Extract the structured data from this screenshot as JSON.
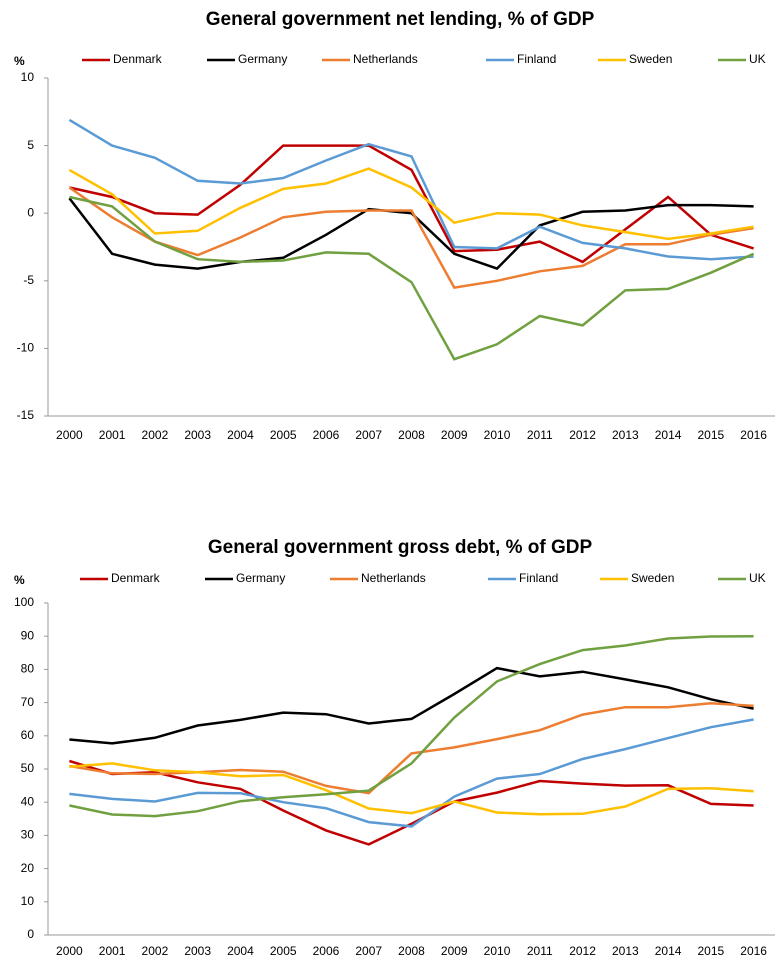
{
  "chart_data": [
    {
      "type": "line",
      "title": "General government net lending, % of GDP",
      "y_label": "%",
      "categories": [
        "2000",
        "2001",
        "2002",
        "2003",
        "2004",
        "2005",
        "2006",
        "2007",
        "2008",
        "2009",
        "2010",
        "2011",
        "2012",
        "2013",
        "2014",
        "2015",
        "2016"
      ],
      "ylim": [
        -15,
        10
      ],
      "yticks": [
        -15,
        -10,
        -5,
        0,
        5,
        10
      ],
      "grid": false,
      "legend": "top",
      "series": [
        {
          "name": "Denmark",
          "color": "#c00000",
          "values": [
            1.9,
            1.2,
            0.0,
            -0.1,
            2.1,
            5.0,
            5.0,
            5.0,
            3.2,
            -2.8,
            -2.7,
            -2.1,
            -3.6,
            -1.2,
            1.2,
            -1.6,
            -2.6
          ]
        },
        {
          "name": "Germany",
          "color": "#000000",
          "values": [
            1.1,
            -3.0,
            -3.8,
            -4.1,
            -3.6,
            -3.3,
            -1.6,
            0.3,
            0.0,
            -3.0,
            -4.1,
            -0.9,
            0.1,
            0.2,
            0.6,
            0.6,
            0.5
          ]
        },
        {
          "name": "Netherlands",
          "color": "#ed7d31",
          "values": [
            1.9,
            -0.3,
            -2.1,
            -3.1,
            -1.8,
            -0.3,
            0.1,
            0.2,
            0.2,
            -5.5,
            -5.0,
            -4.3,
            -3.9,
            -2.3,
            -2.3,
            -1.6,
            -1.1
          ]
        },
        {
          "name": "Finland",
          "color": "#5b9bd5",
          "values": [
            6.9,
            5.0,
            4.1,
            2.4,
            2.2,
            2.6,
            3.9,
            5.1,
            4.2,
            -2.5,
            -2.6,
            -1.0,
            -2.2,
            -2.6,
            -3.2,
            -3.4,
            -3.2
          ]
        },
        {
          "name": "Sweden",
          "color": "#ffc000",
          "values": [
            3.2,
            1.4,
            -1.5,
            -1.3,
            0.4,
            1.8,
            2.2,
            3.3,
            1.9,
            -0.7,
            0.0,
            -0.1,
            -0.9,
            -1.4,
            -1.9,
            -1.5,
            -1.0
          ]
        },
        {
          "name": "UK",
          "color": "#70a040",
          "values": [
            1.2,
            0.5,
            -2.1,
            -3.4,
            -3.6,
            -3.5,
            -2.9,
            -3.0,
            -5.1,
            -10.8,
            -9.7,
            -7.6,
            -8.3,
            -5.7,
            -5.6,
            -4.4,
            -3.0
          ]
        }
      ]
    },
    {
      "type": "line",
      "title": "General government gross debt, % of GDP",
      "y_label": "%",
      "categories": [
        "2000",
        "2001",
        "2002",
        "2003",
        "2004",
        "2005",
        "2006",
        "2007",
        "2008",
        "2009",
        "2010",
        "2011",
        "2012",
        "2013",
        "2014",
        "2015",
        "2016"
      ],
      "ylim": [
        0,
        100
      ],
      "yticks": [
        0,
        10,
        20,
        30,
        40,
        50,
        60,
        70,
        80,
        90,
        100
      ],
      "grid": false,
      "legend": "top",
      "series": [
        {
          "name": "Denmark",
          "color": "#c00000",
          "values": [
            52.4,
            48.5,
            49.0,
            46.0,
            44.0,
            37.5,
            31.5,
            27.3,
            33.5,
            40.2,
            42.9,
            46.4,
            45.6,
            45.0,
            45.1,
            39.5,
            39.0
          ]
        },
        {
          "name": "Germany",
          "color": "#000000",
          "values": [
            58.9,
            57.7,
            59.4,
            63.1,
            64.8,
            67.0,
            66.5,
            63.7,
            65.1,
            72.6,
            80.4,
            77.9,
            79.3,
            77.0,
            74.6,
            71.0,
            68.2
          ]
        },
        {
          "name": "Netherlands",
          "color": "#ed7d31",
          "values": [
            50.9,
            48.7,
            48.5,
            49.0,
            49.7,
            49.2,
            44.9,
            42.7,
            54.7,
            56.5,
            59.0,
            61.7,
            66.4,
            68.6,
            68.6,
            69.8,
            69.0
          ]
        },
        {
          "name": "Finland",
          "color": "#5b9bd5",
          "values": [
            42.5,
            41.0,
            40.2,
            42.8,
            42.7,
            40.0,
            38.2,
            34.0,
            32.7,
            41.7,
            47.1,
            48.5,
            53.0,
            56.0,
            59.3,
            62.6,
            64.9
          ]
        },
        {
          "name": "Sweden",
          "color": "#ffc000",
          "values": [
            50.7,
            51.7,
            49.6,
            49.0,
            47.8,
            48.2,
            43.6,
            38.1,
            36.7,
            40.2,
            36.9,
            36.4,
            36.5,
            38.7,
            44.0,
            44.2,
            43.3
          ]
        },
        {
          "name": "UK",
          "color": "#70a040",
          "values": [
            39.0,
            36.3,
            35.8,
            37.3,
            40.3,
            41.5,
            42.4,
            43.5,
            51.7,
            65.5,
            76.4,
            81.6,
            85.8,
            87.2,
            89.3,
            89.9,
            90.0
          ]
        }
      ]
    }
  ]
}
